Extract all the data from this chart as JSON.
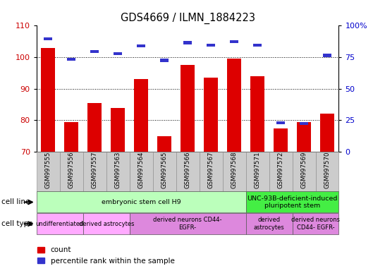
{
  "title": "GDS4669 / ILMN_1884223",
  "samples": [
    "GSM997555",
    "GSM997556",
    "GSM997557",
    "GSM997563",
    "GSM997564",
    "GSM997565",
    "GSM997566",
    "GSM997567",
    "GSM997568",
    "GSM997571",
    "GSM997572",
    "GSM997569",
    "GSM997570"
  ],
  "count_values": [
    103.0,
    79.5,
    85.5,
    84.0,
    93.0,
    75.0,
    97.5,
    93.5,
    99.5,
    94.0,
    77.5,
    79.5,
    82.0
  ],
  "percentile_values": [
    89.5,
    73.5,
    79.5,
    78.0,
    84.0,
    72.5,
    86.5,
    84.5,
    87.5,
    84.5,
    23.0,
    22.5,
    76.5
  ],
  "ylim_left": [
    70,
    110
  ],
  "ylim_right": [
    0,
    100
  ],
  "yticks_left": [
    70,
    80,
    90,
    100,
    110
  ],
  "yticks_right": [
    0,
    25,
    50,
    75,
    100
  ],
  "ytick_labels_right": [
    "0",
    "25",
    "50",
    "75",
    "100%"
  ],
  "bar_color": "#dd0000",
  "percentile_color": "#3333cc",
  "grid_color": "#000000",
  "bg_color": "#ffffff",
  "cell_line_groups": [
    {
      "label": "embryonic stem cell H9",
      "start": 0,
      "end": 8,
      "color": "#bbffbb"
    },
    {
      "label": "UNC-93B-deficient-induced\npluripotent stem",
      "start": 9,
      "end": 12,
      "color": "#44ee44"
    }
  ],
  "cell_type_groups": [
    {
      "label": "undifferentiated",
      "start": 0,
      "end": 1,
      "color": "#ffaaff"
    },
    {
      "label": "derived astrocytes",
      "start": 2,
      "end": 3,
      "color": "#ffaaff"
    },
    {
      "label": "derived neurons CD44-\nEGFR-",
      "start": 4,
      "end": 8,
      "color": "#dd88dd"
    },
    {
      "label": "derived\nastrocytes",
      "start": 9,
      "end": 10,
      "color": "#dd88dd"
    },
    {
      "label": "derived neurons\nCD44- EGFR-",
      "start": 11,
      "end": 12,
      "color": "#dd88dd"
    }
  ],
  "legend_labels": [
    "count",
    "percentile rank within the sample"
  ],
  "ylabel_color_left": "#cc0000",
  "ylabel_color_right": "#0000cc"
}
